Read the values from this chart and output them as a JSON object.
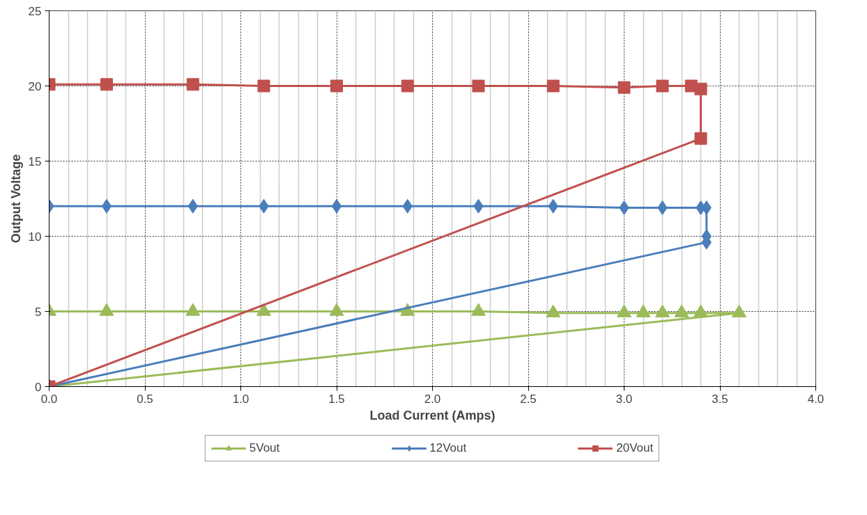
{
  "chart_data": {
    "type": "line",
    "xlabel": "Load Current (Amps)",
    "ylabel": "Output Voltage",
    "xlim": [
      0,
      4
    ],
    "ylim": [
      0,
      25
    ],
    "xticks": [
      {
        "value": 0,
        "label": "0.0"
      },
      {
        "value": 0.5,
        "label": "0.5"
      },
      {
        "value": 1,
        "label": "1.0"
      },
      {
        "value": 1.5,
        "label": "1.5"
      },
      {
        "value": 2,
        "label": "2.0"
      },
      {
        "value": 2.5,
        "label": "2.5"
      },
      {
        "value": 3,
        "label": "3.0"
      },
      {
        "value": 3.5,
        "label": "3.5"
      },
      {
        "value": 4,
        "label": "4.0"
      }
    ],
    "yticks": [
      0,
      5,
      10,
      15,
      20,
      25
    ],
    "grid": true,
    "legend": "bottom",
    "series": [
      {
        "name": "5Vout",
        "color": "#9bbb59",
        "marker": "triangle",
        "x": [
          0,
          0.3,
          0.75,
          1.12,
          1.5,
          1.87,
          2.24,
          2.63,
          3.0,
          3.1,
          3.2,
          3.3,
          3.4,
          3.6,
          0
        ],
        "values": [
          5.0,
          5.0,
          5.0,
          5.0,
          5.0,
          5.0,
          5.0,
          4.9,
          4.9,
          4.9,
          4.9,
          4.9,
          4.9,
          4.9,
          0
        ]
      },
      {
        "name": "12Vout",
        "color": "#4a7ebb",
        "marker": "diamond",
        "x": [
          0,
          0.3,
          0.75,
          1.12,
          1.5,
          1.87,
          2.24,
          2.63,
          3.0,
          3.2,
          3.4,
          3.43,
          3.43,
          3.43,
          0
        ],
        "values": [
          12.0,
          12.0,
          12.0,
          12.0,
          12.0,
          12.0,
          12.0,
          12.0,
          11.9,
          11.9,
          11.9,
          11.9,
          10.0,
          9.6,
          0
        ]
      },
      {
        "name": "20Vout",
        "color": "#c0504d",
        "marker": "square",
        "x": [
          0,
          0.3,
          0.75,
          1.12,
          1.5,
          1.87,
          2.24,
          2.63,
          3.0,
          3.2,
          3.35,
          3.4,
          3.4,
          0
        ],
        "values": [
          20.1,
          20.1,
          20.1,
          20.0,
          20.0,
          20.0,
          20.0,
          20.0,
          19.9,
          20.0,
          20.0,
          19.8,
          16.5,
          0
        ]
      }
    ]
  }
}
